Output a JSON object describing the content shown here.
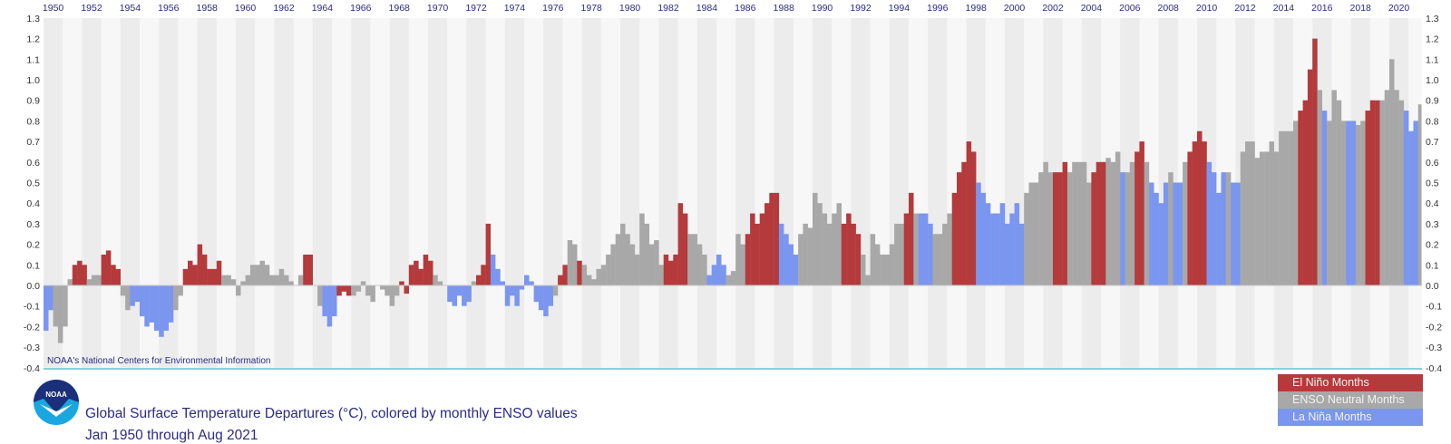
{
  "colors": {
    "el_nino": "#b43a3c",
    "neutral": "#a8a8a8",
    "la_nina": "#7a96ef",
    "axis_line": "#5cc3cf",
    "text": "#2b2b86",
    "stripe_dark": "#ececec",
    "stripe_light": "#f7f7f7"
  },
  "credit": "NOAA's National Centers for Environmental Information",
  "logo_text": "NOAA",
  "title": "Global Surface Temperature Departures (°C), colored by monthly ENSO values",
  "subtitle": "Jan 1950 through Aug 2021",
  "legend": [
    {
      "label": "El Niño Months",
      "key": "E"
    },
    {
      "label": "ENSO Neutral Months",
      "key": "N"
    },
    {
      "label": "La Niña Months",
      "key": "L"
    }
  ],
  "chart_data": {
    "type": "bar",
    "title": "Global Surface Temperature Departures (°C), colored by monthly ENSO values",
    "subtitle": "Jan 1950 through Aug 2021",
    "xlabel": "",
    "ylabel": "°C",
    "start_year": 1950,
    "end": "2021-08",
    "period": "quarter (approximate quarterly values read from monthly bars)",
    "ylim": [
      -0.4,
      1.3
    ],
    "x_tick_labels": [
      "1950",
      "1952",
      "1954",
      "1956",
      "1958",
      "1960",
      "1962",
      "1964",
      "1966",
      "1968",
      "1970",
      "1972",
      "1974",
      "1976",
      "1978",
      "1980",
      "1982",
      "1984",
      "1986",
      "1988",
      "1990",
      "1992",
      "1994",
      "1996",
      "1998",
      "2000",
      "2002",
      "2004",
      "2006",
      "2008",
      "2010",
      "2012",
      "2014",
      "2016",
      "2018",
      "2020"
    ],
    "y_tick_labels": [
      "1.3",
      "1.2",
      "1.1",
      "1.0",
      "0.9",
      "0.8",
      "0.7",
      "0.6",
      "0.5",
      "0.4",
      "0.3",
      "0.2",
      "0.1",
      "0.0",
      "-0.1",
      "-0.2",
      "-0.3",
      "-0.4"
    ],
    "legend_placement": "bottom-right",
    "values": [
      -0.22,
      -0.12,
      -0.2,
      -0.28,
      -0.2,
      0.03,
      0.1,
      0.12,
      0.1,
      0.03,
      0.05,
      0.05,
      0.15,
      0.17,
      0.1,
      0.08,
      -0.05,
      -0.12,
      -0.1,
      -0.08,
      -0.15,
      -0.2,
      -0.18,
      -0.22,
      -0.25,
      -0.22,
      -0.18,
      -0.12,
      -0.05,
      0.08,
      0.12,
      0.1,
      0.2,
      0.15,
      0.08,
      0.08,
      0.12,
      0.05,
      0.05,
      0.03,
      -0.05,
      0.02,
      0.05,
      0.1,
      0.1,
      0.12,
      0.1,
      0.05,
      0.05,
      0.08,
      0.05,
      0.02,
      0.0,
      0.05,
      0.15,
      0.15,
      0.0,
      -0.1,
      -0.15,
      -0.2,
      -0.15,
      -0.05,
      -0.03,
      -0.05,
      -0.05,
      -0.03,
      0.02,
      -0.05,
      -0.08,
      0.0,
      -0.02,
      -0.05,
      -0.1,
      -0.05,
      0.02,
      -0.04,
      0.1,
      0.12,
      0.08,
      0.15,
      0.12,
      0.05,
      0.02,
      0.0,
      -0.08,
      -0.1,
      -0.05,
      -0.1,
      -0.08,
      0.02,
      0.05,
      0.1,
      0.3,
      0.15,
      0.08,
      0.02,
      -0.1,
      -0.05,
      -0.1,
      -0.02,
      0.05,
      0.02,
      -0.08,
      -0.12,
      -0.15,
      -0.1,
      -0.05,
      0.05,
      0.1,
      0.22,
      0.2,
      0.12,
      0.1,
      0.05,
      0.03,
      0.08,
      0.1,
      0.15,
      0.2,
      0.25,
      0.3,
      0.25,
      0.2,
      0.15,
      0.35,
      0.3,
      0.2,
      0.22,
      0.1,
      0.15,
      0.12,
      0.15,
      0.4,
      0.35,
      0.25,
      0.25,
      0.2,
      0.15,
      0.05,
      0.1,
      0.15,
      0.1,
      0.05,
      0.07,
      0.25,
      0.2,
      0.25,
      0.35,
      0.3,
      0.35,
      0.4,
      0.45,
      0.45,
      0.3,
      0.25,
      0.2,
      0.15,
      0.25,
      0.3,
      0.28,
      0.45,
      0.4,
      0.35,
      0.3,
      0.35,
      0.4,
      0.3,
      0.35,
      0.3,
      0.25,
      0.15,
      0.05,
      0.25,
      0.2,
      0.15,
      0.15,
      0.2,
      0.3,
      0.3,
      0.35,
      0.45,
      0.35,
      0.35,
      0.35,
      0.3,
      0.25,
      0.25,
      0.3,
      0.35,
      0.45,
      0.55,
      0.6,
      0.7,
      0.65,
      0.5,
      0.45,
      0.4,
      0.35,
      0.35,
      0.4,
      0.3,
      0.35,
      0.4,
      0.3,
      0.45,
      0.5,
      0.5,
      0.55,
      0.6,
      0.55,
      0.55,
      0.55,
      0.6,
      0.55,
      0.6,
      0.6,
      0.6,
      0.5,
      0.55,
      0.6,
      0.6,
      0.62,
      0.6,
      0.65,
      0.55,
      0.55,
      0.6,
      0.65,
      0.7,
      0.6,
      0.5,
      0.45,
      0.4,
      0.5,
      0.55,
      0.5,
      0.5,
      0.6,
      0.65,
      0.7,
      0.75,
      0.7,
      0.6,
      0.55,
      0.45,
      0.55,
      0.55,
      0.5,
      0.5,
      0.65,
      0.7,
      0.7,
      0.62,
      0.65,
      0.65,
      0.7,
      0.65,
      0.75,
      0.75,
      0.75,
      0.8,
      0.85,
      0.9,
      1.05,
      1.2,
      0.95,
      0.85,
      0.8,
      0.95,
      0.9,
      0.8,
      0.8,
      0.8,
      0.78,
      0.8,
      0.85,
      0.9,
      0.9,
      0.9,
      0.95,
      1.1,
      0.95,
      0.9,
      0.85,
      0.75,
      0.8,
      0.88
    ],
    "enso": [
      "L",
      "L",
      "N",
      "N",
      "N",
      "N",
      "E",
      "E",
      "E",
      "N",
      "N",
      "N",
      "E",
      "E",
      "E",
      "E",
      "N",
      "N",
      "L",
      "L",
      "L",
      "L",
      "L",
      "L",
      "L",
      "L",
      "L",
      "N",
      "N",
      "E",
      "E",
      "E",
      "E",
      "E",
      "E",
      "E",
      "E",
      "N",
      "N",
      "N",
      "N",
      "N",
      "N",
      "N",
      "N",
      "N",
      "N",
      "N",
      "N",
      "N",
      "N",
      "N",
      "N",
      "N",
      "E",
      "E",
      "E",
      "N",
      "L",
      "L",
      "L",
      "E",
      "E",
      "E",
      "N",
      "N",
      "N",
      "N",
      "N",
      "N",
      "N",
      "N",
      "N",
      "N",
      "E",
      "E",
      "E",
      "E",
      "E",
      "E",
      "E",
      "N",
      "N",
      "N",
      "L",
      "L",
      "L",
      "L",
      "L",
      "N",
      "E",
      "E",
      "E",
      "L",
      "L",
      "L",
      "L",
      "L",
      "L",
      "L",
      "L",
      "L",
      "L",
      "L",
      "L",
      "L",
      "N",
      "E",
      "E",
      "N",
      "N",
      "E",
      "N",
      "N",
      "N",
      "N",
      "N",
      "N",
      "N",
      "N",
      "N",
      "N",
      "N",
      "N",
      "N",
      "N",
      "N",
      "N",
      "N",
      "E",
      "E",
      "E",
      "E",
      "E",
      "N",
      "N",
      "N",
      "N",
      "L",
      "L",
      "L",
      "L",
      "N",
      "N",
      "N",
      "N",
      "E",
      "E",
      "E",
      "E",
      "E",
      "E",
      "E",
      "L",
      "L",
      "L",
      "L",
      "N",
      "N",
      "N",
      "N",
      "N",
      "N",
      "N",
      "N",
      "N",
      "E",
      "E",
      "E",
      "E",
      "N",
      "N",
      "N",
      "N",
      "N",
      "N",
      "N",
      "N",
      "N",
      "E",
      "E",
      "N",
      "L",
      "L",
      "L",
      "N",
      "N",
      "N",
      "N",
      "E",
      "E",
      "E",
      "E",
      "E",
      "L",
      "L",
      "L",
      "L",
      "L",
      "L",
      "L",
      "L",
      "L",
      "L",
      "N",
      "N",
      "N",
      "N",
      "N",
      "N",
      "E",
      "E",
      "E",
      "N",
      "N",
      "N",
      "N",
      "N",
      "E",
      "E",
      "E",
      "N",
      "N",
      "N",
      "L",
      "N",
      "N",
      "E",
      "E",
      "N",
      "L",
      "L",
      "L",
      "L",
      "N",
      "L",
      "L",
      "N",
      "E",
      "E",
      "E",
      "E",
      "L",
      "L",
      "L",
      "L",
      "N",
      "L",
      "L",
      "N",
      "N",
      "N",
      "N",
      "N",
      "N",
      "N",
      "N",
      "N",
      "N",
      "N",
      "N",
      "E",
      "E",
      "E",
      "E",
      "N",
      "L",
      "N",
      "N",
      "N",
      "N",
      "L",
      "L",
      "N",
      "N",
      "E",
      "E",
      "E",
      "N",
      "N",
      "N",
      "N",
      "N",
      "L",
      "L",
      "L",
      "N"
    ]
  }
}
